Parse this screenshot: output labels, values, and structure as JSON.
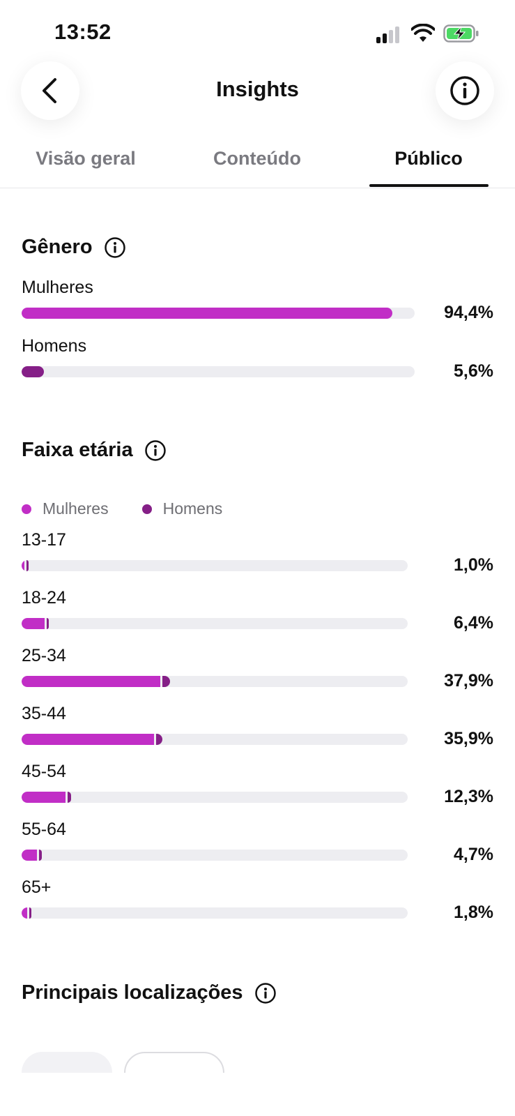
{
  "status": {
    "time": "13:52"
  },
  "header": {
    "title": "Insights"
  },
  "tabs": [
    {
      "label": "Visão geral",
      "active": false
    },
    {
      "label": "Conteúdo",
      "active": false
    },
    {
      "label": "Público",
      "active": true
    }
  ],
  "gender": {
    "title": "Gênero",
    "rows": [
      {
        "label": "Mulheres",
        "value": 94.4,
        "value_label": "94,4%"
      },
      {
        "label": "Homens",
        "value": 5.6,
        "value_label": "5,6%"
      }
    ]
  },
  "age": {
    "title": "Faixa etária",
    "legend": [
      {
        "label": "Mulheres",
        "color": "#c12ec6"
      },
      {
        "label": "Homens",
        "color": "#851f87"
      }
    ],
    "rows": [
      {
        "label": "13-17",
        "women": 0.8,
        "men": 0.2,
        "value_label": "1,0%"
      },
      {
        "label": "18-24",
        "women": 6.0,
        "men": 0.4,
        "value_label": "6,4%"
      },
      {
        "label": "25-34",
        "women": 36.0,
        "men": 1.9,
        "value_label": "37,9%"
      },
      {
        "label": "35-44",
        "women": 34.3,
        "men": 1.6,
        "value_label": "35,9%"
      },
      {
        "label": "45-54",
        "women": 11.3,
        "men": 1.0,
        "value_label": "12,3%"
      },
      {
        "label": "55-64",
        "women": 3.9,
        "men": 0.8,
        "value_label": "4,7%"
      },
      {
        "label": "65+",
        "women": 1.4,
        "men": 0.4,
        "value_label": "1,8%"
      }
    ]
  },
  "locations": {
    "title": "Principais localizações"
  },
  "colors": {
    "women": "#c12ec6",
    "men": "#851f87",
    "track": "#ededf1",
    "battery": "#4cd964"
  }
}
